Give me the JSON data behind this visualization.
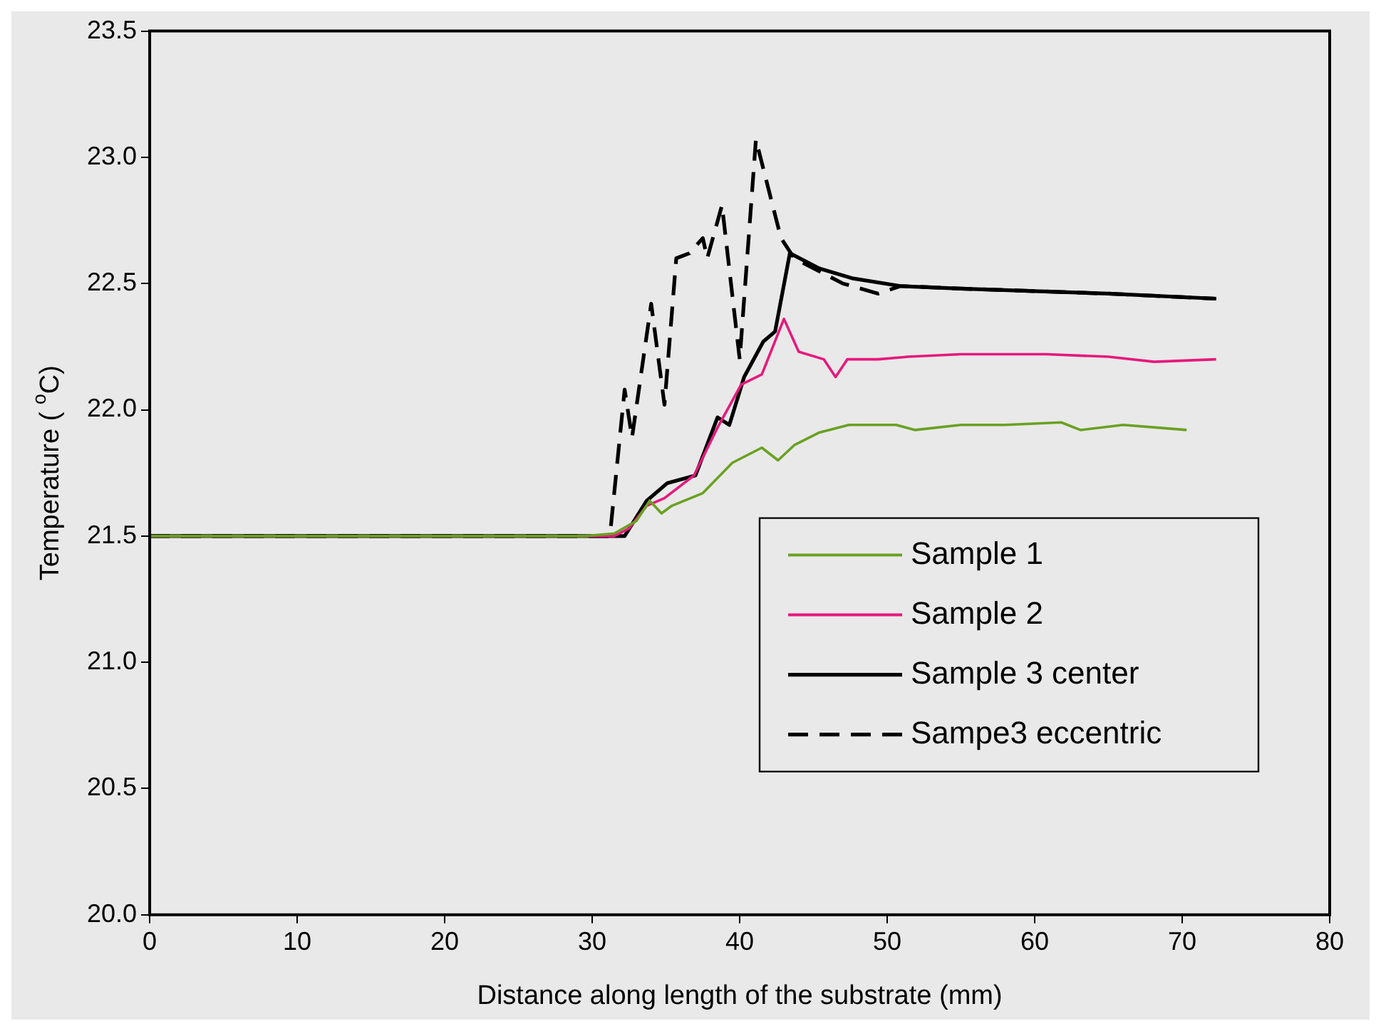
{
  "chart_data": {
    "type": "line",
    "xlabel": "Distance along length of the substrate (mm)",
    "ylabel": "Temperature ( $^{o}$C)",
    "xlim": [
      0,
      80
    ],
    "xticks": [
      0,
      10,
      20,
      30,
      40,
      50,
      60,
      70,
      80
    ],
    "ylim": [
      20,
      23.5
    ],
    "yticks": [
      {
        "value": 20,
        "label": "20.0"
      },
      20.5,
      {
        "value": 21,
        "label": "21.0"
      },
      21.5,
      {
        "value": 22,
        "label": "22.0"
      },
      22.5,
      {
        "value": 23,
        "label": "23.0"
      },
      23.5
    ],
    "grid": false,
    "legend": "right",
    "marker": "none",
    "series": [
      {
        "name": "Sample 1",
        "color": "#6aa121",
        "line_style": "solid",
        "x": [
          0,
          29.5,
          31.5,
          33,
          33.9,
          34.7,
          35.4,
          37.5,
          39.5,
          41.5,
          42.6,
          43.7,
          45.4,
          47.4,
          50.6,
          51.9,
          55,
          58,
          61.8,
          63.1,
          66,
          70.3
        ],
        "values": [
          21.5,
          21.5,
          21.51,
          21.56,
          21.64,
          21.59,
          21.62,
          21.67,
          21.79,
          21.85,
          21.8,
          21.86,
          21.91,
          21.94,
          21.94,
          21.92,
          21.94,
          21.94,
          21.95,
          21.92,
          21.94,
          21.92
        ]
      },
      {
        "name": "Sample 2",
        "color": "#e6197d",
        "line_style": "solid",
        "x": [
          0,
          31.5,
          32.5,
          33.7,
          34.9,
          36.9,
          38.5,
          40.1,
          41.5,
          43,
          44,
          45.7,
          46.5,
          47.3,
          49.4,
          51.4,
          55,
          60.8,
          65,
          68.1,
          72.3
        ],
        "values": [
          21.5,
          21.5,
          21.53,
          21.62,
          21.65,
          21.74,
          21.93,
          22.1,
          22.14,
          22.36,
          22.23,
          22.2,
          22.13,
          22.2,
          22.2,
          22.21,
          22.22,
          22.22,
          22.21,
          22.19,
          22.2
        ]
      },
      {
        "name": "Sample 3 center",
        "color": "#000000",
        "line_style": "solid",
        "x": [
          0,
          32.2,
          33.7,
          35.1,
          37,
          38.5,
          39.3,
          40.3,
          41.6,
          42.4,
          43.4,
          45.4,
          47.7,
          50.9,
          55,
          60,
          65,
          72.3
        ],
        "values": [
          21.5,
          21.5,
          21.64,
          21.71,
          21.74,
          21.97,
          21.94,
          22.13,
          22.27,
          22.31,
          22.62,
          22.56,
          22.52,
          22.49,
          22.48,
          22.47,
          22.46,
          22.44
        ]
      },
      {
        "name": "Sampe3 eccentric",
        "color": "#000000",
        "line_style": "dashed",
        "x": [
          0,
          31.2,
          32.2,
          32.7,
          34,
          34.9,
          35.7,
          36.6,
          37.5,
          37.8,
          38.8,
          40,
          41.1,
          42.8,
          43.7,
          47,
          49.4,
          50.9,
          55,
          60,
          65,
          72.3
        ],
        "values": [
          21.5,
          21.5,
          22.08,
          21.89,
          22.42,
          22.02,
          22.6,
          22.62,
          22.68,
          22.6,
          22.81,
          22.2,
          23.07,
          22.68,
          22.6,
          22.5,
          22.46,
          22.49,
          22.48,
          22.47,
          22.46,
          22.44
        ]
      }
    ]
  }
}
